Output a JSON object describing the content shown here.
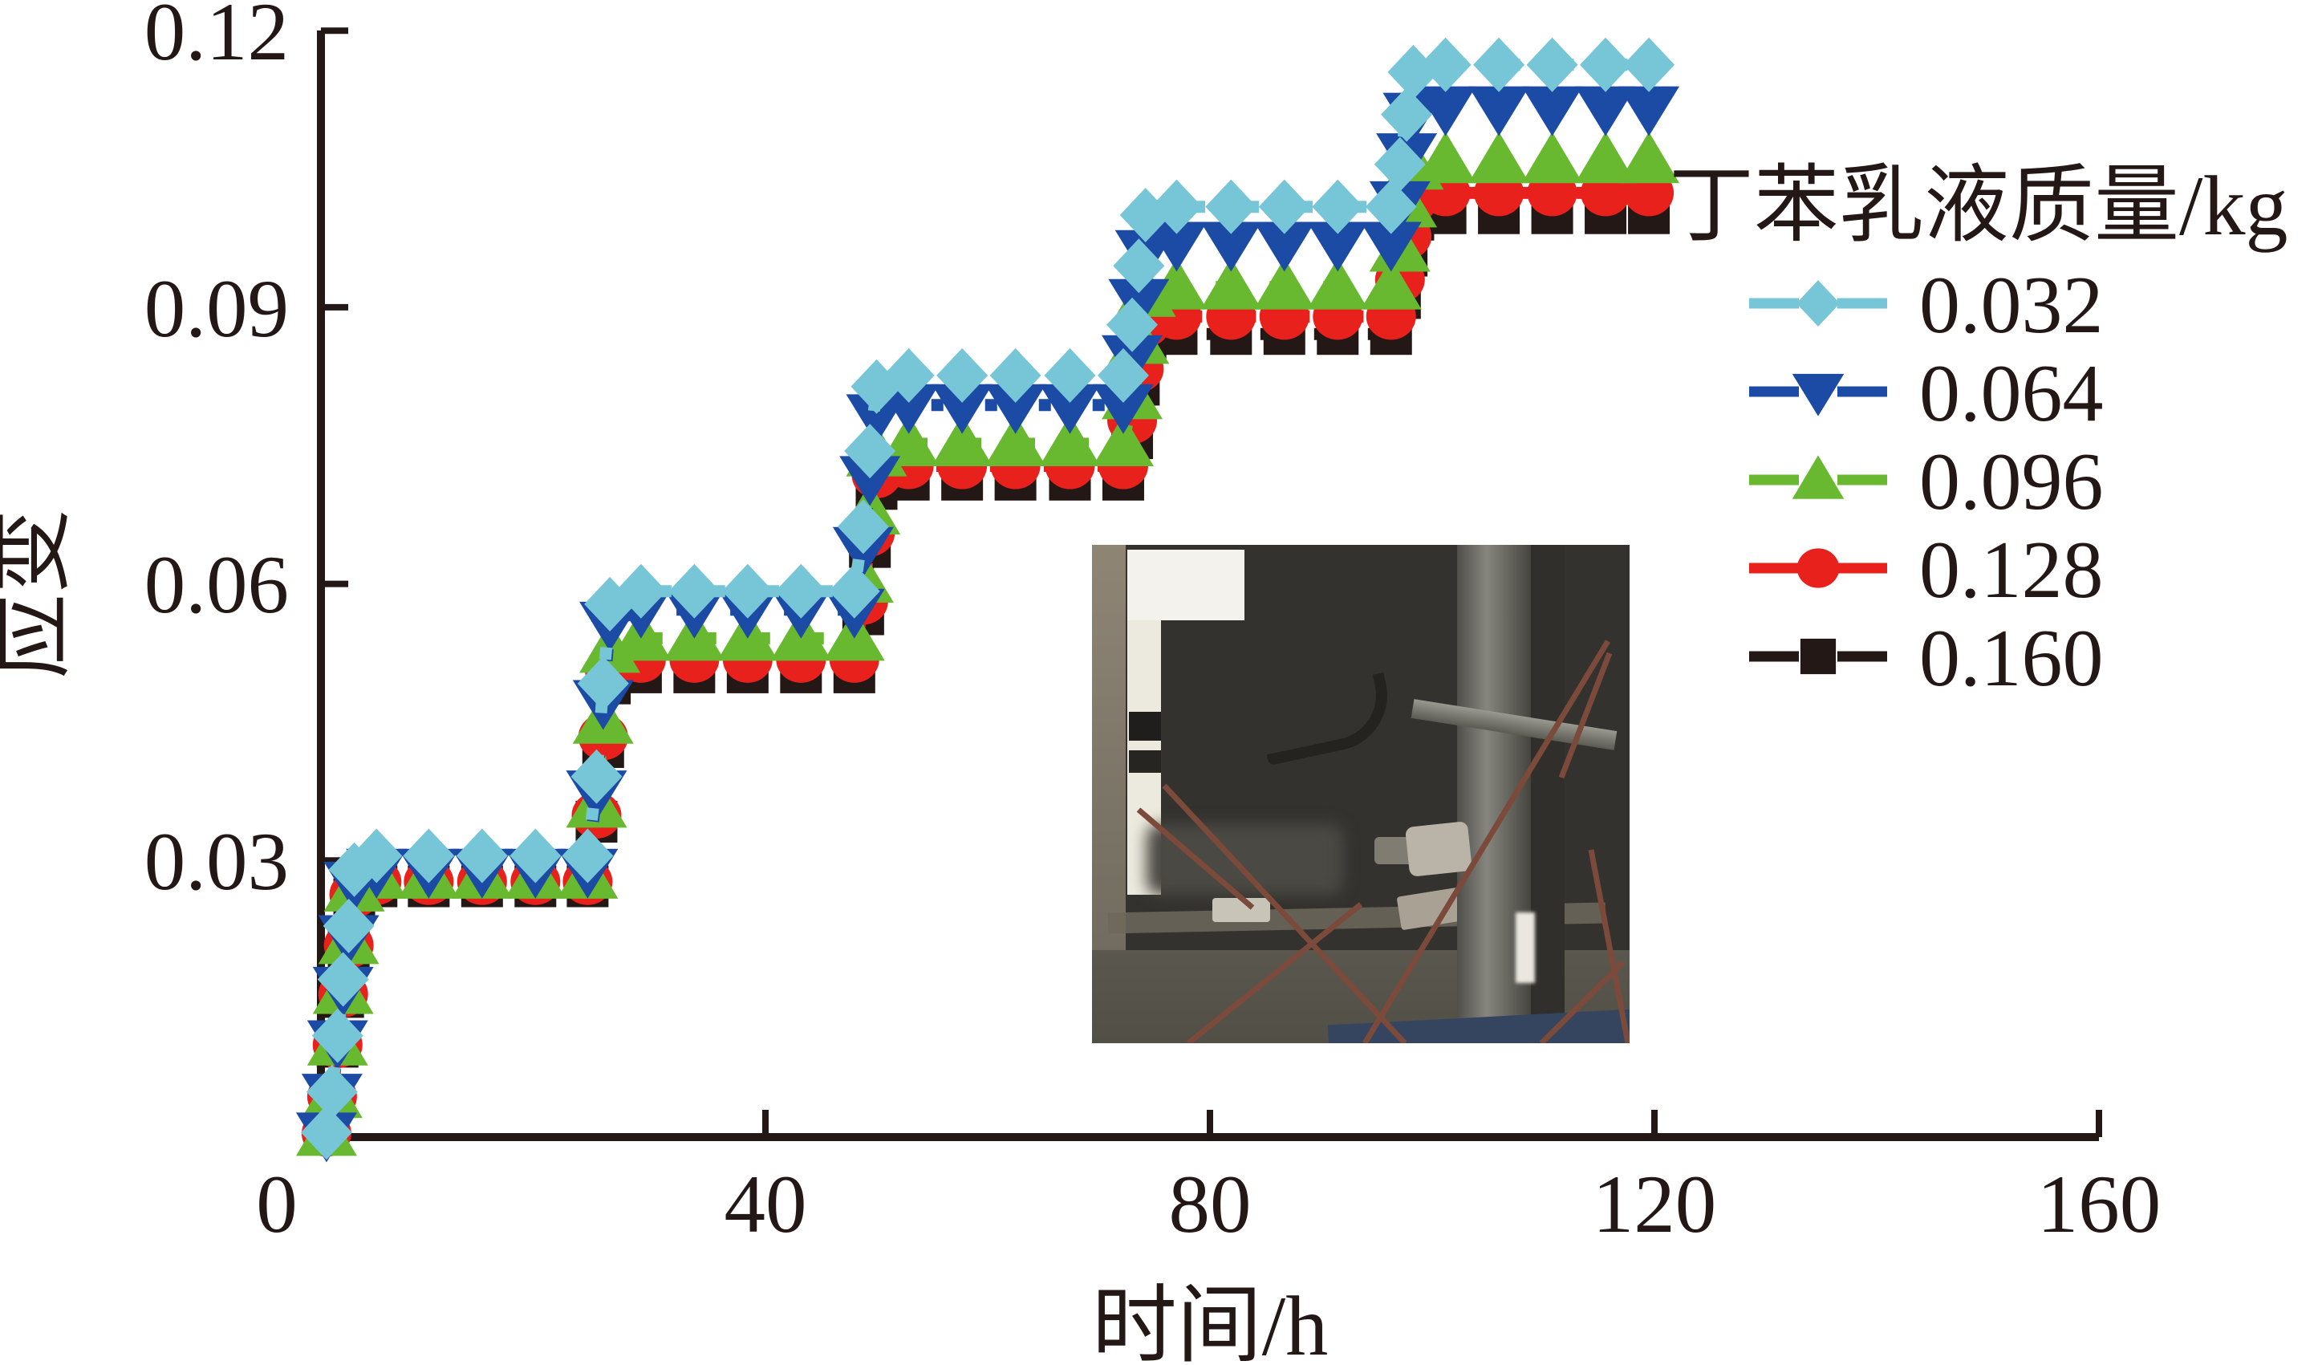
{
  "figure": {
    "background": "#ffffff",
    "axis_color": "#231815"
  },
  "axes": {
    "x": {
      "label": "时间/h",
      "tick_labels": [
        "0",
        "40",
        "80",
        "120",
        "160"
      ],
      "tick_values": [
        0,
        40,
        80,
        120,
        160
      ],
      "range": [
        0,
        160
      ]
    },
    "y": {
      "label": "应变",
      "tick_labels": [
        "0.03",
        "0.06",
        "0.09",
        "0.12"
      ],
      "tick_values": [
        0.03,
        0.06,
        0.09,
        0.12
      ],
      "range": [
        0,
        0.12
      ]
    }
  },
  "legend": {
    "title": "丁苯乳液质量/kg",
    "entries": [
      {
        "label": "0.032",
        "marker": "diamond",
        "color": "#76c6d8"
      },
      {
        "label": "0.064",
        "marker": "triangle-down",
        "color": "#1c4ba5"
      },
      {
        "label": "0.096",
        "marker": "triangle-up",
        "color": "#68b92f"
      },
      {
        "label": "0.128",
        "marker": "circle",
        "color": "#e8211d"
      },
      {
        "label": "0.160",
        "marker": "square",
        "color": "#231815"
      }
    ]
  },
  "chart_data": {
    "type": "line",
    "title": "",
    "xlabel": "时间/h",
    "ylabel": "应变",
    "xlim": [
      0,
      160
    ],
    "ylim": [
      0,
      0.12
    ],
    "grid": false,
    "legend_position": "right",
    "line_style": "dashed-with-markers",
    "step_times_h": [
      0,
      24,
      48,
      72,
      96
    ],
    "series": [
      {
        "name": "0.032",
        "marker": "diamond",
        "color": "#76c6d8",
        "plateau_values": [
          0.0305,
          0.0592,
          0.0826,
          0.1009,
          0.1163
        ],
        "points": [
          [
            0.5,
            0.0005
          ],
          [
            1,
            0.0049
          ],
          [
            1.5,
            0.011
          ],
          [
            2,
            0.0171
          ],
          [
            2.5,
            0.0229
          ],
          [
            3,
            0.029
          ],
          [
            5,
            0.0305
          ],
          [
            9.7,
            0.0305
          ],
          [
            14.5,
            0.0305
          ],
          [
            19.3,
            0.0305
          ],
          [
            24,
            0.0305
          ],
          [
            24.8,
            0.0391
          ],
          [
            25.4,
            0.0492
          ],
          [
            26,
            0.0578
          ],
          [
            28.8,
            0.0592
          ],
          [
            33.6,
            0.0592
          ],
          [
            38.4,
            0.0592
          ],
          [
            43.2,
            0.0592
          ],
          [
            48,
            0.0592
          ],
          [
            48.8,
            0.0662
          ],
          [
            49.4,
            0.0744
          ],
          [
            50,
            0.0814
          ],
          [
            52.9,
            0.0826
          ],
          [
            57.7,
            0.0826
          ],
          [
            62.5,
            0.0826
          ],
          [
            67.4,
            0.0826
          ],
          [
            72.2,
            0.0826
          ],
          [
            73,
            0.0881
          ],
          [
            73.6,
            0.0945
          ],
          [
            74.2,
            0.1
          ],
          [
            77,
            0.1009
          ],
          [
            81.9,
            0.1009
          ],
          [
            86.7,
            0.1009
          ],
          [
            91.5,
            0.1009
          ],
          [
            96.3,
            0.1009
          ],
          [
            97.1,
            0.1055
          ],
          [
            97.7,
            0.1109
          ],
          [
            98.3,
            0.1155
          ],
          [
            101.2,
            0.1163
          ],
          [
            106,
            0.1163
          ],
          [
            110.8,
            0.1163
          ],
          [
            115.6,
            0.1163
          ],
          [
            119.5,
            0.1163
          ]
        ]
      },
      {
        "name": "0.064",
        "marker": "triangle-down",
        "color": "#1c4ba5",
        "plateau_values": [
          0.029,
          0.0572,
          0.0794,
          0.097,
          0.1117
        ],
        "points": [
          [
            0.5,
            0.0004
          ],
          [
            1,
            0.0046
          ],
          [
            1.5,
            0.0104
          ],
          [
            2,
            0.0162
          ],
          [
            2.5,
            0.0218
          ],
          [
            3,
            0.0276
          ],
          [
            5,
            0.029
          ],
          [
            9.7,
            0.029
          ],
          [
            14.5,
            0.029
          ],
          [
            19.3,
            0.029
          ],
          [
            24,
            0.029
          ],
          [
            24.8,
            0.0375
          ],
          [
            25.4,
            0.0473
          ],
          [
            26,
            0.0558
          ],
          [
            28.8,
            0.0572
          ],
          [
            33.6,
            0.0572
          ],
          [
            38.4,
            0.0572
          ],
          [
            43.2,
            0.0572
          ],
          [
            48,
            0.0572
          ],
          [
            48.8,
            0.0639
          ],
          [
            49.4,
            0.0716
          ],
          [
            50,
            0.0783
          ],
          [
            52.9,
            0.0794
          ],
          [
            57.7,
            0.0794
          ],
          [
            62.5,
            0.0794
          ],
          [
            67.4,
            0.0794
          ],
          [
            72.2,
            0.0794
          ],
          [
            73,
            0.0847
          ],
          [
            73.6,
            0.0908
          ],
          [
            74.2,
            0.0961
          ],
          [
            77,
            0.097
          ],
          [
            81.9,
            0.097
          ],
          [
            86.7,
            0.097
          ],
          [
            91.5,
            0.097
          ],
          [
            96.3,
            0.097
          ],
          [
            97.1,
            0.1014
          ],
          [
            97.7,
            0.1066
          ],
          [
            98.3,
            0.111
          ],
          [
            101.2,
            0.1117
          ],
          [
            106,
            0.1117
          ],
          [
            110.8,
            0.1117
          ],
          [
            115.6,
            0.1117
          ],
          [
            119.5,
            0.1117
          ]
        ]
      },
      {
        "name": "0.096",
        "marker": "triangle-up",
        "color": "#68b92f",
        "plateau_values": [
          0.0283,
          0.0541,
          0.0752,
          0.0922,
          0.1059
        ],
        "points": [
          [
            0.5,
            0.0004
          ],
          [
            1,
            0.0045
          ],
          [
            1.5,
            0.0102
          ],
          [
            2,
            0.0158
          ],
          [
            2.5,
            0.0212
          ],
          [
            3,
            0.0269
          ],
          [
            5,
            0.0283
          ],
          [
            9.7,
            0.0283
          ],
          [
            14.5,
            0.0283
          ],
          [
            19.3,
            0.0283
          ],
          [
            24,
            0.0283
          ],
          [
            24.8,
            0.036
          ],
          [
            25.4,
            0.0451
          ],
          [
            26,
            0.0528
          ],
          [
            28.8,
            0.0541
          ],
          [
            33.6,
            0.0541
          ],
          [
            38.4,
            0.0541
          ],
          [
            43.2,
            0.0541
          ],
          [
            48,
            0.0541
          ],
          [
            48.8,
            0.0604
          ],
          [
            49.4,
            0.0678
          ],
          [
            50,
            0.0741
          ],
          [
            52.9,
            0.0752
          ],
          [
            57.7,
            0.0752
          ],
          [
            62.5,
            0.0752
          ],
          [
            67.4,
            0.0752
          ],
          [
            72.2,
            0.0752
          ],
          [
            73,
            0.0803
          ],
          [
            73.6,
            0.0863
          ],
          [
            74.2,
            0.0914
          ],
          [
            77,
            0.0922
          ],
          [
            81.9,
            0.0922
          ],
          [
            86.7,
            0.0922
          ],
          [
            91.5,
            0.0922
          ],
          [
            96.3,
            0.0922
          ],
          [
            97.1,
            0.0963
          ],
          [
            97.7,
            0.1011
          ],
          [
            98.3,
            0.1052
          ],
          [
            101.2,
            0.1059
          ],
          [
            106,
            0.1059
          ],
          [
            110.8,
            0.1059
          ],
          [
            115.6,
            0.1059
          ],
          [
            119.5,
            0.1059
          ]
        ]
      },
      {
        "name": "0.128",
        "marker": "circle",
        "color": "#e8211d",
        "plateau_values": [
          0.0277,
          0.0518,
          0.0728,
          0.089,
          0.1024
        ],
        "points": [
          [
            0.5,
            0.0004
          ],
          [
            1,
            0.0044
          ],
          [
            1.5,
            0.01
          ],
          [
            2,
            0.0155
          ],
          [
            2.5,
            0.0208
          ],
          [
            3,
            0.0263
          ],
          [
            5,
            0.0277
          ],
          [
            9.7,
            0.0277
          ],
          [
            14.5,
            0.0277
          ],
          [
            19.3,
            0.0277
          ],
          [
            24,
            0.0277
          ],
          [
            24.8,
            0.0349
          ],
          [
            25.4,
            0.0434
          ],
          [
            26,
            0.0506
          ],
          [
            28.8,
            0.0518
          ],
          [
            33.6,
            0.0518
          ],
          [
            38.4,
            0.0518
          ],
          [
            43.2,
            0.0518
          ],
          [
            48,
            0.0518
          ],
          [
            48.8,
            0.0581
          ],
          [
            49.4,
            0.0655
          ],
          [
            50,
            0.0718
          ],
          [
            52.9,
            0.0728
          ],
          [
            57.7,
            0.0728
          ],
          [
            62.5,
            0.0728
          ],
          [
            67.4,
            0.0728
          ],
          [
            72.2,
            0.0728
          ],
          [
            73,
            0.0777
          ],
          [
            73.6,
            0.0833
          ],
          [
            74.2,
            0.0882
          ],
          [
            77,
            0.089
          ],
          [
            81.9,
            0.089
          ],
          [
            86.7,
            0.089
          ],
          [
            91.5,
            0.089
          ],
          [
            96.3,
            0.089
          ],
          [
            97.1,
            0.093
          ],
          [
            97.7,
            0.0977
          ],
          [
            98.3,
            0.1017
          ],
          [
            101.2,
            0.1024
          ],
          [
            106,
            0.1024
          ],
          [
            110.8,
            0.1024
          ],
          [
            115.6,
            0.1024
          ],
          [
            119.5,
            0.1024
          ]
        ]
      },
      {
        "name": "0.160",
        "marker": "square",
        "color": "#231815",
        "plateau_values": [
          0.0272,
          0.0504,
          0.0713,
          0.0871,
          0.1002
        ],
        "points": [
          [
            0.5,
            0.0003
          ],
          [
            1,
            0.0044
          ],
          [
            1.5,
            0.0098
          ],
          [
            2,
            0.0152
          ],
          [
            2.5,
            0.0204
          ],
          [
            3,
            0.0258
          ],
          [
            5,
            0.0272
          ],
          [
            9.7,
            0.0272
          ],
          [
            14.5,
            0.0272
          ],
          [
            19.3,
            0.0272
          ],
          [
            24,
            0.0272
          ],
          [
            24.8,
            0.0342
          ],
          [
            25.4,
            0.0423
          ],
          [
            26,
            0.0492
          ],
          [
            28.8,
            0.0504
          ],
          [
            33.6,
            0.0504
          ],
          [
            38.4,
            0.0504
          ],
          [
            43.2,
            0.0504
          ],
          [
            48,
            0.0504
          ],
          [
            48.8,
            0.0567
          ],
          [
            49.4,
            0.064
          ],
          [
            50,
            0.0703
          ],
          [
            52.9,
            0.0713
          ],
          [
            57.7,
            0.0713
          ],
          [
            62.5,
            0.0713
          ],
          [
            67.4,
            0.0713
          ],
          [
            72.2,
            0.0713
          ],
          [
            73,
            0.0758
          ],
          [
            73.6,
            0.0816
          ],
          [
            74.2,
            0.0863
          ],
          [
            77,
            0.0871
          ],
          [
            81.9,
            0.0871
          ],
          [
            86.7,
            0.0871
          ],
          [
            91.5,
            0.0871
          ],
          [
            96.3,
            0.0871
          ],
          [
            97.1,
            0.091
          ],
          [
            97.7,
            0.0956
          ],
          [
            98.3,
            0.0995
          ],
          [
            101.2,
            0.1002
          ],
          [
            106,
            0.1002
          ],
          [
            110.8,
            0.1002
          ],
          [
            115.6,
            0.1002
          ],
          [
            119.5,
            0.1002
          ]
        ]
      }
    ]
  }
}
